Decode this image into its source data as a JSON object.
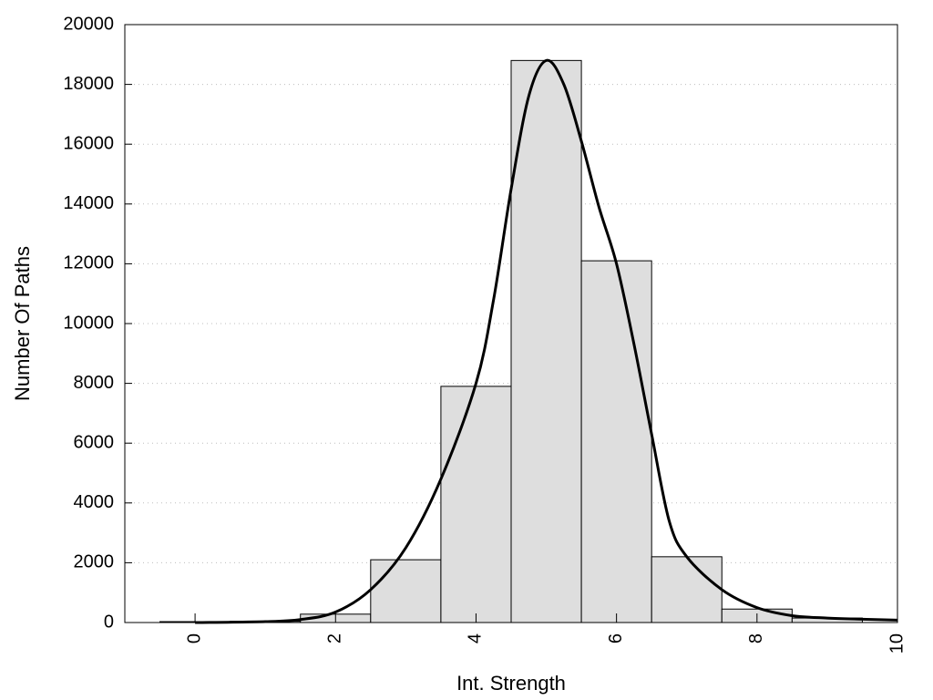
{
  "chart_data": {
    "type": "bar",
    "title": "",
    "xlabel": "Int. Strength",
    "ylabel": "Number Of Paths",
    "xlim": [
      -1,
      10
    ],
    "ylim": [
      0,
      20000
    ],
    "grid": true,
    "x_ticks": [
      0,
      2,
      4,
      6,
      8,
      10
    ],
    "y_ticks": [
      0,
      2000,
      4000,
      6000,
      8000,
      10000,
      12000,
      14000,
      16000,
      18000,
      20000
    ],
    "bars": {
      "x": [
        0,
        1,
        2,
        3,
        4,
        5,
        6,
        7,
        8,
        9
      ],
      "values": [
        30,
        40,
        280,
        2100,
        7900,
        18800,
        12100,
        2200,
        450,
        150
      ]
    },
    "curve": {
      "x": [
        0,
        1,
        1.5,
        2,
        2.5,
        3,
        3.5,
        4,
        4.25,
        4.5,
        4.75,
        5,
        5.25,
        5.5,
        5.75,
        6,
        6.25,
        6.5,
        6.75,
        7,
        7.5,
        8,
        8.5,
        9,
        9.5,
        10
      ],
      "values": [
        0,
        30,
        100,
        350,
        1100,
        2500,
        4800,
        8000,
        10800,
        14500,
        17600,
        18800,
        18000,
        16100,
        13900,
        12000,
        9300,
        6300,
        3400,
        2200,
        1100,
        500,
        230,
        150,
        110,
        80
      ]
    }
  }
}
